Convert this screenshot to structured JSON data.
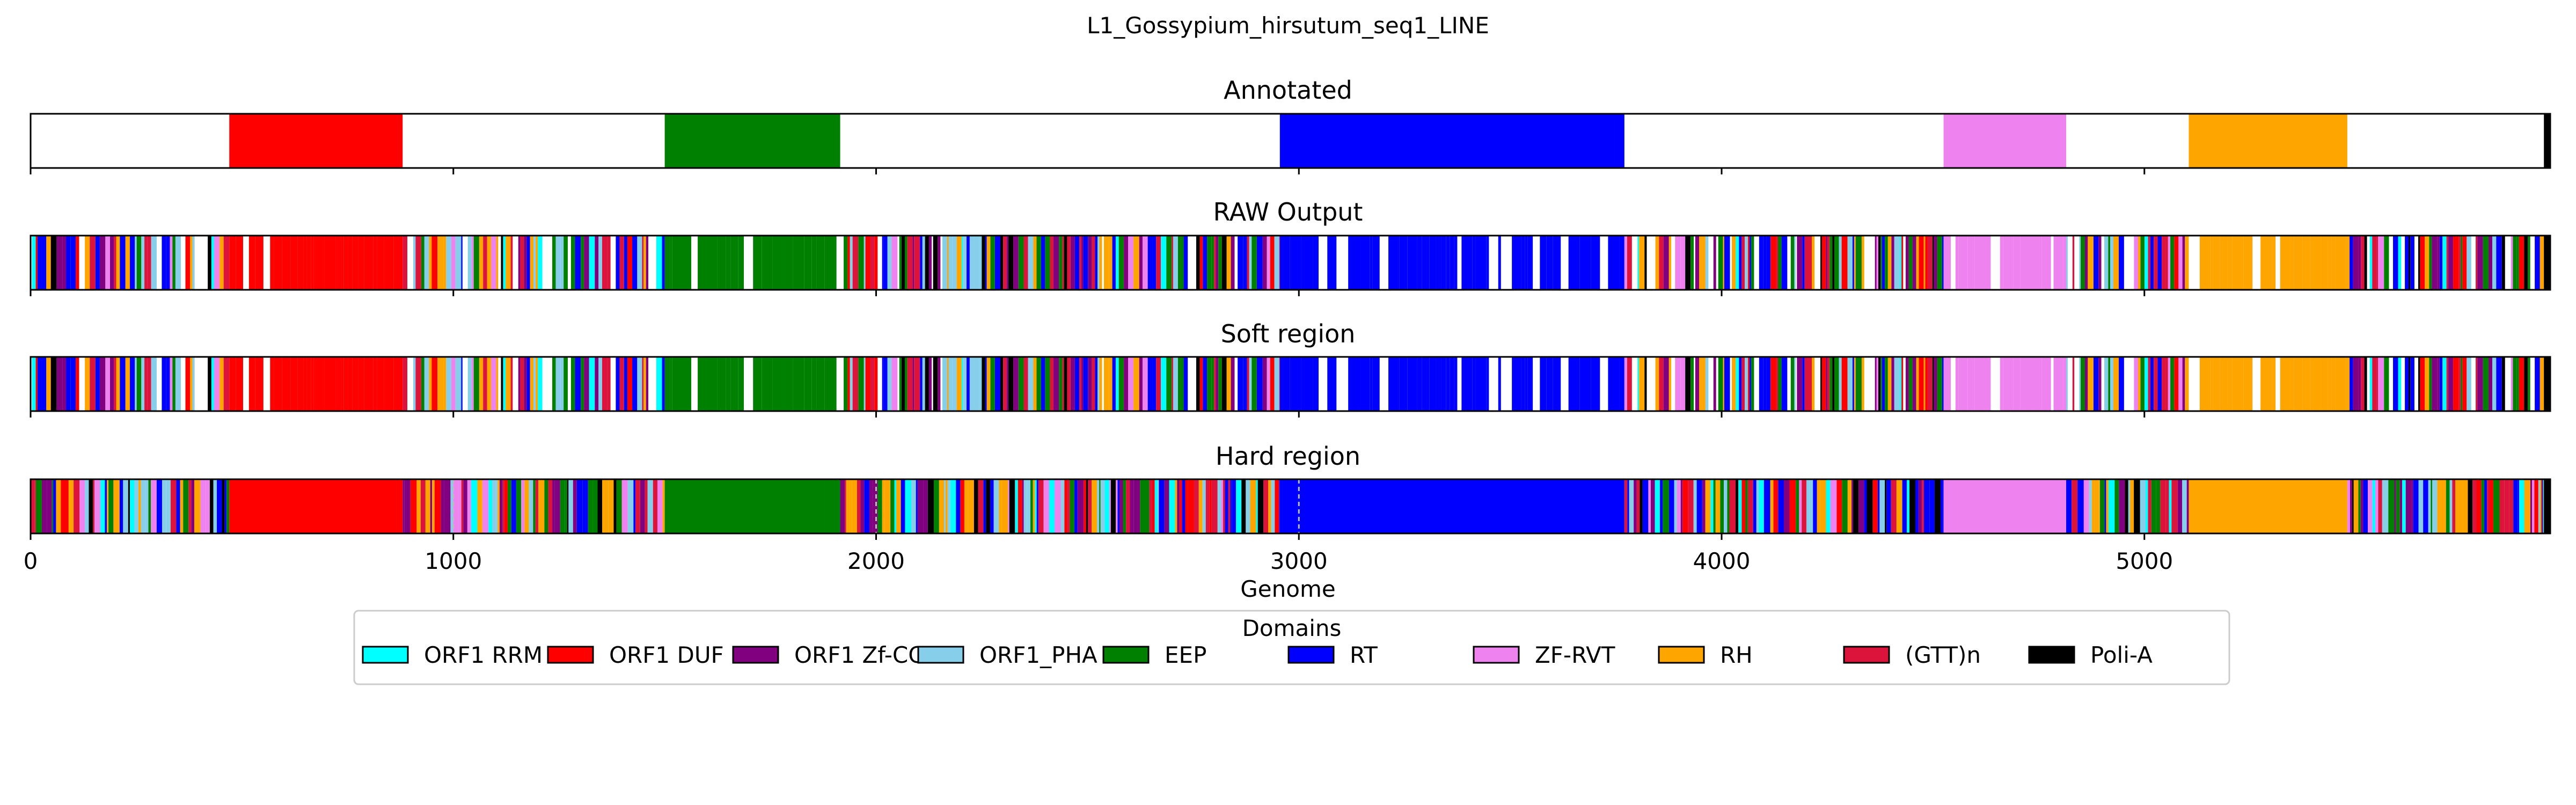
{
  "chart_data": {
    "type": "track",
    "title": "L1_Gossypium_hirsutum_seq1_LINE",
    "xlabel": "Genome",
    "xlim": [
      0,
      5960
    ],
    "xticks": [
      0,
      1000,
      2000,
      3000,
      4000,
      5000
    ],
    "domain_colors": {
      "ORF1 RRM": "#00ffff",
      "ORF1 DUF": "#ff0000",
      "ORF1 Zf-CCHC": "#800080",
      "ORF1_PHA": "#87ceeb",
      "EEP": "#008000",
      "RT": "#0000ff",
      "ZF-RVT": "#ee82ee",
      "RH": "#ffa500",
      "(GTT)n": "#dc143c",
      "Poli-A": "#000000"
    },
    "legend": {
      "title": "Domains",
      "placement": "bottom-center",
      "entries": [
        "ORF1 RRM",
        "ORF1 DUF",
        "ORF1 Zf-CCHC",
        "ORF1_PHA",
        "EEP",
        "RT",
        "ZF-RVT",
        "RH",
        "(GTT)n",
        "Poli-A"
      ]
    },
    "annotated": [
      {
        "domain": "ORF1 DUF",
        "start": 470,
        "end": 880
      },
      {
        "domain": "EEP",
        "start": 1500,
        "end": 1915
      },
      {
        "domain": "RT",
        "start": 2955,
        "end": 3770
      },
      {
        "domain": "ZF-RVT",
        "start": 4525,
        "end": 4815
      },
      {
        "domain": "RH",
        "start": 5105,
        "end": 5480
      },
      {
        "domain": "Poli-A",
        "start": 5945,
        "end": 5960
      }
    ],
    "panels": [
      {
        "title": "Annotated"
      },
      {
        "title": "RAW Output"
      },
      {
        "title": "Soft region"
      },
      {
        "title": "Hard region"
      }
    ]
  }
}
